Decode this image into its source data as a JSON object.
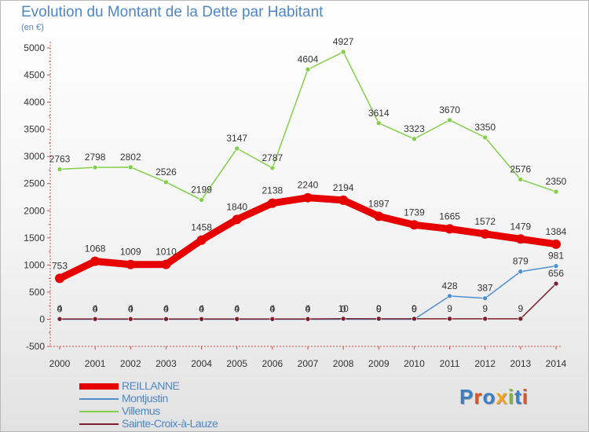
{
  "page": {
    "title": "Evolution du Montant de la Dette par Habitant",
    "subtitle": "(en €)",
    "logo_text": "Proxiti",
    "logo_colors": [
      "#3a7fc4",
      "#e3501e",
      "#3a7fc4",
      "#f6a21b",
      "#7cb82f",
      "#3a7fc4",
      "#e3501e"
    ]
  },
  "chart_data": {
    "type": "line",
    "title": "Evolution du Montant de la Dette par Habitant",
    "subtitle": "(en €)",
    "xlabel": "",
    "ylabel": "",
    "x": [
      "2000",
      "2001",
      "2002",
      "2003",
      "2004",
      "2005",
      "2006",
      "2007",
      "2008",
      "2009",
      "2010",
      "2011",
      "2012",
      "2013",
      "2014"
    ],
    "ylim": [
      -500,
      5000
    ],
    "yticks": [
      "-500",
      "0",
      "500",
      "1000",
      "1500",
      "2000",
      "2500",
      "3000",
      "3500",
      "4000",
      "4500",
      "5000"
    ],
    "grid": false,
    "legend_position": "bottom-left",
    "series": [
      {
        "name": "REILLANNE",
        "color": "#e60000",
        "values": [
          753,
          1068,
          1009,
          1010,
          1458,
          1840,
          2138,
          2240,
          2194,
          1897,
          1739,
          1665,
          1572,
          1479,
          1384
        ],
        "labels": [
          "753",
          "1068",
          "1009",
          "1010",
          "1458",
          "1840",
          "2138",
          "2240",
          "2194",
          "1897",
          "1739",
          "1665",
          "1572",
          "1479",
          "1384"
        ]
      },
      {
        "name": "Montjustin",
        "color": "#4f8fd0",
        "values": [
          0,
          0,
          0,
          0,
          0,
          0,
          0,
          0,
          0,
          0,
          0,
          428,
          387,
          879,
          981
        ],
        "labels": [
          "0",
          "0",
          "0",
          "0",
          "0",
          "0",
          "0",
          "0",
          "0",
          "0",
          "0",
          "428",
          "387",
          "879",
          "981"
        ]
      },
      {
        "name": "Villemus",
        "color": "#82cf4a",
        "values": [
          2763,
          2798,
          2802,
          2526,
          2199,
          3147,
          2787,
          4604,
          4927,
          3614,
          3323,
          3670,
          3350,
          2576,
          2350
        ],
        "labels": [
          "2763",
          "2798",
          "2802",
          "2526",
          "2199",
          "3147",
          "2787",
          "4604",
          "4927",
          "3614",
          "3323",
          "3670",
          "3350",
          "2576",
          "2350"
        ]
      },
      {
        "name": "Sainte-Croix-à-Lauze",
        "color": "#7a1f2b",
        "values": [
          4,
          4,
          4,
          4,
          4,
          4,
          4,
          4,
          10,
          9,
          9,
          9,
          9,
          9,
          656
        ],
        "labels": [
          "4",
          "4",
          "4",
          "4",
          "4",
          "4",
          "4",
          "4",
          "10",
          "9",
          "9",
          "9",
          "9",
          "9",
          "656"
        ]
      }
    ]
  }
}
